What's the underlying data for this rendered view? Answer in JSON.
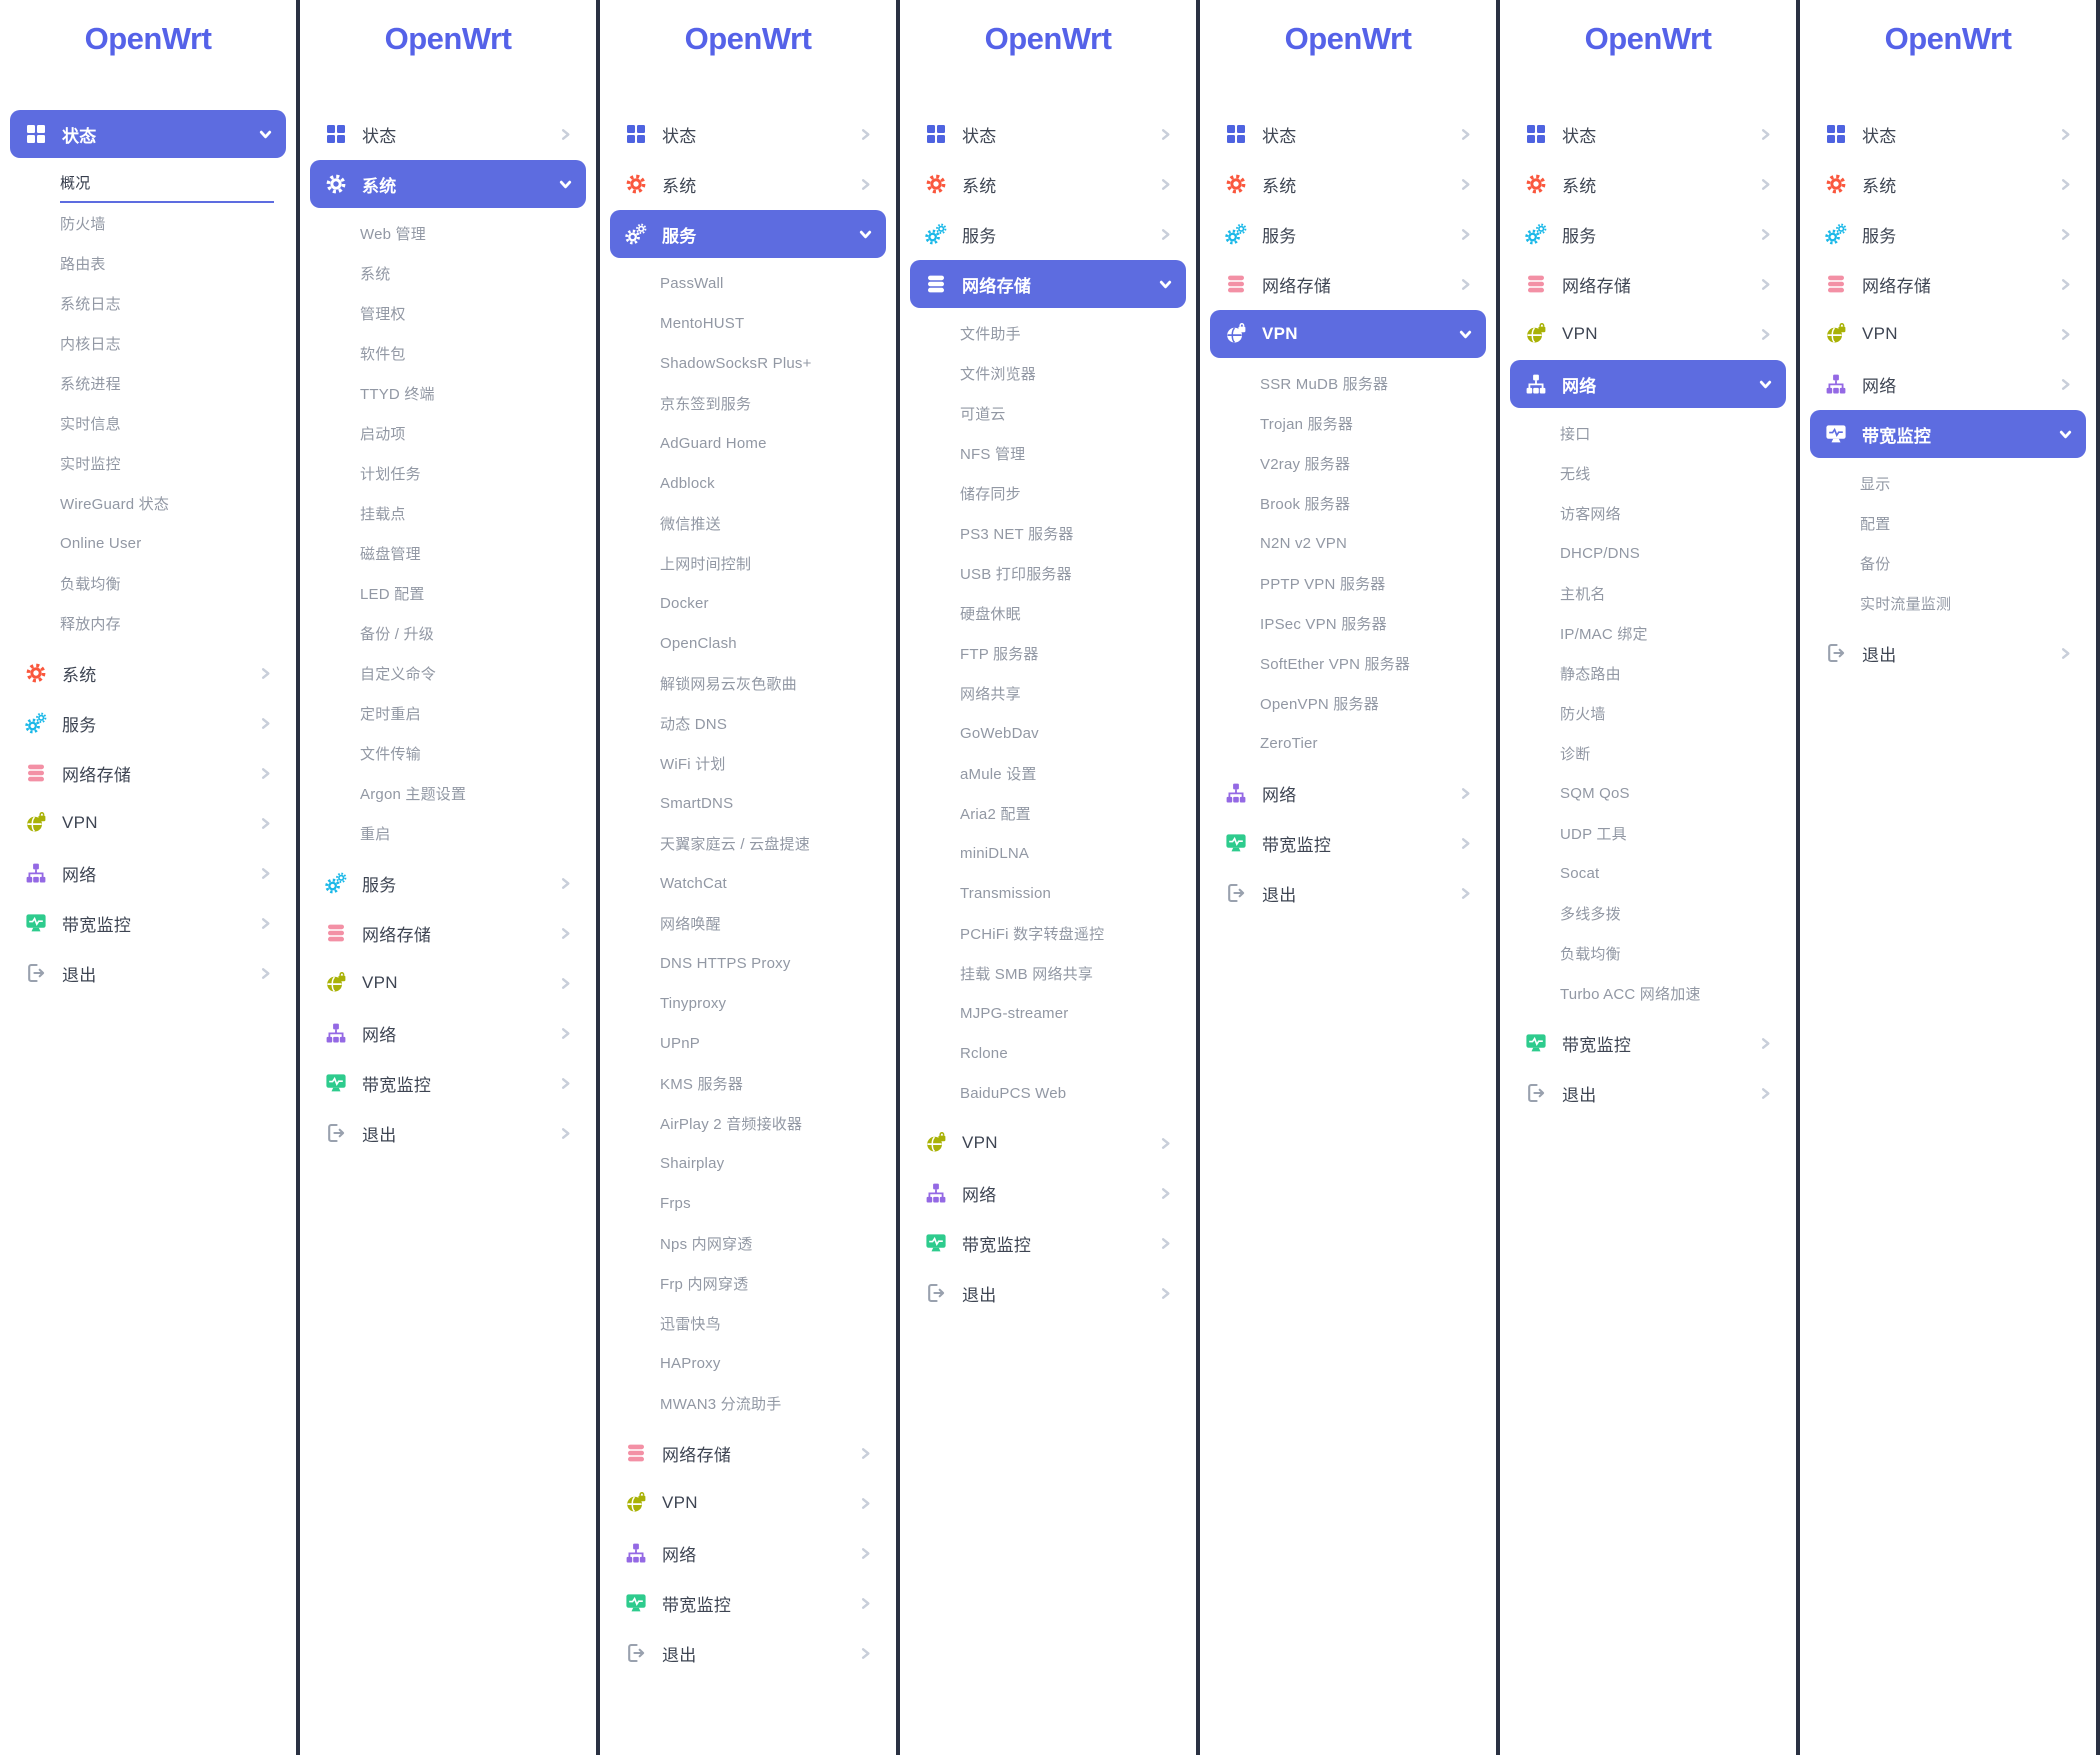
{
  "app": {
    "logo_text": "OpenWrt"
  },
  "theme": {
    "primary": "#5d6ce0",
    "logo_color": "#5562e8",
    "item_text": "#3e4553",
    "subitem_text": "#9298a4",
    "subitem_active_text": "#363d4c",
    "chevron": "#c9cfda",
    "panel_bg": "#ffffff",
    "separator": "#2a3142",
    "icon_colors": {
      "status": "#4e63e0",
      "system": "#fa573d",
      "services": "#1ab8e8",
      "nas": "#f390a5",
      "vpn": "#a9b206",
      "network": "#9469e4",
      "bandwidth": "#2ecb8d",
      "logout": "#99a1ae"
    }
  },
  "menu": [
    {
      "id": "status",
      "label": "状态"
    },
    {
      "id": "system",
      "label": "系统"
    },
    {
      "id": "services",
      "label": "服务"
    },
    {
      "id": "nas",
      "label": "网络存储"
    },
    {
      "id": "vpn",
      "label": "VPN"
    },
    {
      "id": "network",
      "label": "网络"
    },
    {
      "id": "bandwidth",
      "label": "带宽监控"
    },
    {
      "id": "logout",
      "label": "退出"
    }
  ],
  "submenus": {
    "status": [
      "概况",
      "防火墙",
      "路由表",
      "系统日志",
      "内核日志",
      "系统进程",
      "实时信息",
      "实时监控",
      "WireGuard 状态",
      "Online User",
      "负载均衡",
      "释放内存"
    ],
    "system": [
      "Web 管理",
      "系统",
      "管理权",
      "软件包",
      "TTYD 终端",
      "启动项",
      "计划任务",
      "挂载点",
      "磁盘管理",
      "LED 配置",
      "备份 / 升级",
      "自定义命令",
      "定时重启",
      "文件传输",
      "Argon 主题设置",
      "重启"
    ],
    "services": [
      "PassWall",
      "MentoHUST",
      "ShadowSocksR Plus+",
      "京东签到服务",
      "AdGuard Home",
      "Adblock",
      "微信推送",
      "上网时间控制",
      "Docker",
      "OpenClash",
      "解锁网易云灰色歌曲",
      "动态 DNS",
      "WiFi 计划",
      "SmartDNS",
      "天翼家庭云 / 云盘提速",
      "WatchCat",
      "网络唤醒",
      "DNS HTTPS Proxy",
      "Tinyproxy",
      "UPnP",
      "KMS 服务器",
      "AirPlay 2 音频接收器",
      "Shairplay",
      "Frps",
      "Nps 内网穿透",
      "Frp 内网穿透",
      "迅雷快鸟",
      "HAProxy",
      "MWAN3 分流助手"
    ],
    "nas": [
      "文件助手",
      "文件浏览器",
      "可道云",
      "NFS 管理",
      "储存同步",
      "PS3 NET 服务器",
      "USB 打印服务器",
      "硬盘休眠",
      "FTP 服务器",
      "网络共享",
      "GoWebDav",
      "aMule 设置",
      "Aria2 配置",
      "miniDLNA",
      "Transmission",
      "PCHiFi 数字转盘遥控",
      "挂载 SMB 网络共享",
      "MJPG-streamer",
      "Rclone",
      "BaiduPCS Web"
    ],
    "vpn": [
      "SSR MuDB 服务器",
      "Trojan 服务器",
      "V2ray 服务器",
      "Brook 服务器",
      "N2N v2 VPN",
      "PPTP VPN 服务器",
      "IPSec VPN 服务器",
      "SoftEther VPN 服务器",
      "OpenVPN 服务器",
      "ZeroTier"
    ],
    "network": [
      "接口",
      "无线",
      "访客网络",
      "DHCP/DNS",
      "主机名",
      "IP/MAC 绑定",
      "静态路由",
      "防火墙",
      "诊断",
      "SQM QoS",
      "UDP 工具",
      "Socat",
      "多线多拨",
      "负载均衡",
      "Turbo ACC 网络加速"
    ],
    "bandwidth": [
      "显示",
      "配置",
      "备份",
      "实时流量监测"
    ]
  },
  "columns": [
    {
      "expanded": "status",
      "active_subitem": "概况"
    },
    {
      "expanded": "system"
    },
    {
      "expanded": "services"
    },
    {
      "expanded": "nas"
    },
    {
      "expanded": "vpn"
    },
    {
      "expanded": "network"
    },
    {
      "expanded": "bandwidth"
    }
  ]
}
